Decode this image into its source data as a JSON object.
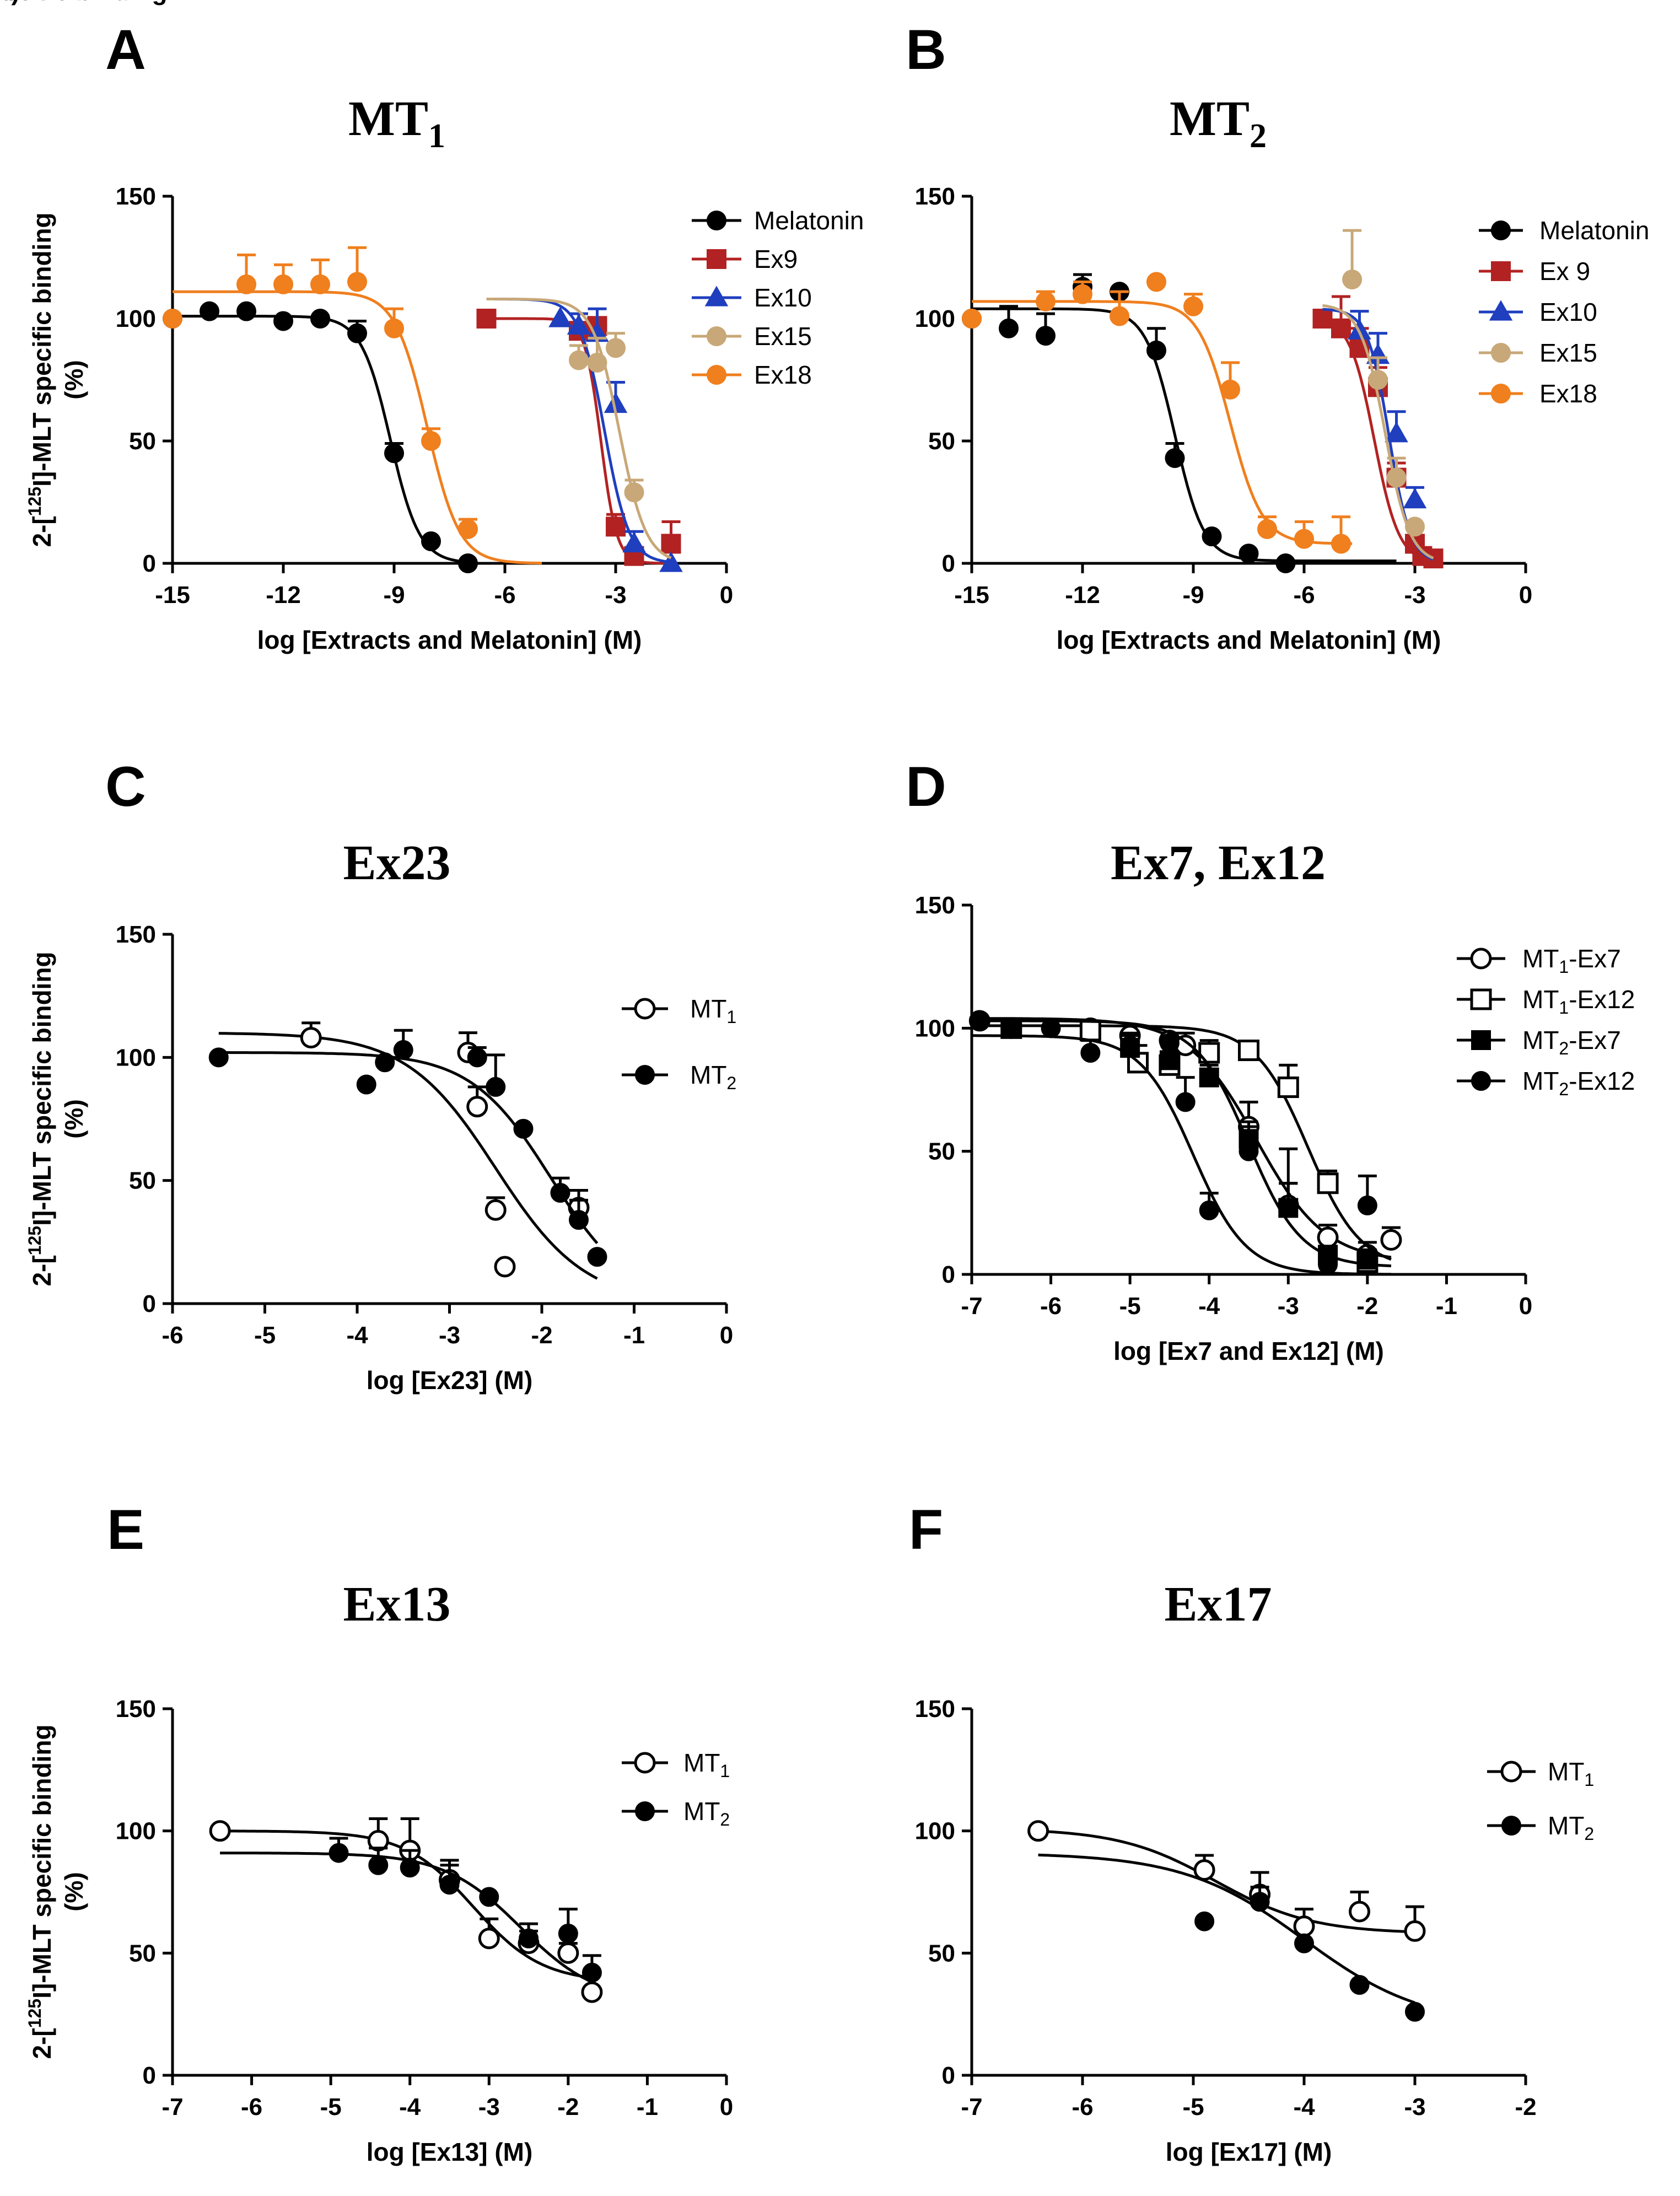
{
  "figure": {
    "ylabel_line1": "2-[125I]-MLT specific binding",
    "ylabel_line2": "(%)",
    "ylabel_parts": {
      "pre": "2-[",
      "sup": "125",
      "post": "I]-MLT specific binding"
    }
  },
  "chart_data": [
    {
      "panel": "A",
      "type": "scatter",
      "title": "MT1",
      "title_parts": {
        "main": "MT",
        "sub": "1"
      },
      "xlabel": "log [Extracts and Melatonin] (M)",
      "ylabel": "2-[125I]-MLT specific binding (%)",
      "xlim": [
        -15,
        0
      ],
      "ylim": [
        0,
        150
      ],
      "xticks": [
        -15,
        -12,
        -9,
        -6,
        -3,
        0
      ],
      "yticks": [
        0,
        50,
        100,
        150
      ],
      "legend_position": "top-right",
      "series": [
        {
          "name": "Melatonin",
          "color": "#000000",
          "marker": "circle",
          "fill": true,
          "x": [
            -15,
            -14,
            -13,
            -12,
            -11,
            -10,
            -9,
            -8,
            -7
          ],
          "y": [
            100,
            103,
            103,
            99,
            100,
            94,
            45,
            9,
            0
          ],
          "err": [
            0,
            0,
            0,
            0,
            0,
            5,
            4,
            0,
            0
          ],
          "fit": {
            "top": 101,
            "bottom": 0,
            "logic50": -9.1,
            "hill": 1.1,
            "x0": -15,
            "x1": -7
          }
        },
        {
          "name": "Ex9",
          "color": "#b22222",
          "marker": "square",
          "fill": true,
          "x": [
            -6.5,
            -4,
            -3.5,
            -3,
            -2.5,
            -1.5
          ],
          "y": [
            100,
            95,
            97,
            15,
            3,
            8
          ],
          "err": [
            0,
            0,
            0,
            5,
            0,
            9
          ],
          "fit": {
            "top": 100,
            "bottom": 0,
            "logic50": -3.4,
            "hill": 2.0,
            "x0": -6.5,
            "x1": -1.5
          }
        },
        {
          "name": "Ex10",
          "color": "#1f3fbf",
          "marker": "triangle",
          "fill": true,
          "x": [
            -4.5,
            -4,
            -3.5,
            -3,
            -2.5,
            -1.5
          ],
          "y": [
            100,
            97,
            94,
            65,
            8,
            0
          ],
          "err": [
            0,
            5,
            10,
            9,
            5,
            0
          ],
          "fit": {
            "top": 108,
            "bottom": 0,
            "logic50": -3.3,
            "hill": 1.3,
            "x0": -6.5,
            "x1": -1.5
          }
        },
        {
          "name": "Ex15",
          "color": "#c8a878",
          "marker": "circle",
          "fill": true,
          "x": [
            -4,
            -3.5,
            -3,
            -2.5
          ],
          "y": [
            83,
            82,
            88,
            29
          ],
          "err": [
            6,
            10,
            6,
            5
          ],
          "fit": {
            "top": 108,
            "bottom": 0,
            "logic50": -2.9,
            "hill": 1.2,
            "x0": -6.5,
            "x1": -1.5
          }
        },
        {
          "name": "Ex18",
          "color": "#f07f1e",
          "marker": "circle",
          "fill": true,
          "x": [
            -15,
            -13,
            -12,
            -11,
            -10,
            -9,
            -8,
            -7
          ],
          "y": [
            100,
            114,
            114,
            114,
            115,
            96,
            50,
            14
          ],
          "err": [
            0,
            12,
            8,
            10,
            14,
            8,
            5,
            4
          ],
          "fit": {
            "top": 111,
            "bottom": 0,
            "logic50": -8.1,
            "hill": 1.0,
            "x0": -15,
            "x1": -5
          }
        }
      ]
    },
    {
      "panel": "B",
      "type": "scatter",
      "title": "MT2",
      "title_parts": {
        "main": "MT",
        "sub": "2"
      },
      "xlabel": "log [Extracts and Melatonin] (M)",
      "ylabel": "2-[125I]-MLT specific binding (%)",
      "xlim": [
        -15,
        0
      ],
      "ylim": [
        0,
        150
      ],
      "xticks": [
        -15,
        -12,
        -9,
        -6,
        -3,
        0
      ],
      "yticks": [
        0,
        50,
        100,
        150
      ],
      "legend_position": "top-right",
      "series": [
        {
          "name": "Melatonin",
          "color": "#000000",
          "marker": "circle",
          "fill": true,
          "x": [
            -15,
            -14,
            -13,
            -12,
            -11,
            -10,
            -9.5,
            -8.5,
            -7.5,
            -6.5
          ],
          "y": [
            100,
            96,
            93,
            113,
            111,
            87,
            43,
            11,
            4,
            0
          ],
          "err": [
            0,
            9,
            9,
            5,
            0,
            9,
            6,
            0,
            0,
            0
          ],
          "fit": {
            "top": 104,
            "bottom": 1,
            "logic50": -9.5,
            "hill": 1.1,
            "x0": -15,
            "x1": -3.5
          }
        },
        {
          "name": "Ex 9",
          "color": "#b22222",
          "marker": "square",
          "fill": true,
          "x": [
            -5.5,
            -5,
            -4.5,
            -4,
            -3.5,
            -3,
            -2.8,
            -2.5
          ],
          "y": [
            100,
            96,
            88,
            72,
            35,
            8,
            3,
            2
          ],
          "err": [
            0,
            13,
            8,
            8,
            6,
            0,
            0,
            0
          ],
          "fit": {
            "top": 101,
            "bottom": 0,
            "logic50": -4.1,
            "hill": 1.3,
            "x0": -5.5,
            "x1": -2.5
          }
        },
        {
          "name": "Ex10",
          "color": "#1f3fbf",
          "marker": "triangle",
          "fill": true,
          "x": [
            -4.5,
            -4,
            -3.5,
            -3
          ],
          "y": [
            95,
            85,
            53,
            26
          ],
          "err": [
            8,
            9,
            9,
            5
          ],
          "fit": {
            "top": 104,
            "bottom": 0,
            "logic50": -3.7,
            "hill": 1.5,
            "x0": -5.5,
            "x1": -2.5
          }
        },
        {
          "name": "Ex15",
          "color": "#c8a878",
          "marker": "circle",
          "fill": true,
          "x": [
            -4.7,
            -4,
            -3.5,
            -3
          ],
          "y": [
            116,
            75,
            35,
            15
          ],
          "err": [
            20,
            9,
            8,
            0
          ],
          "fit": {
            "top": 106,
            "bottom": 0,
            "logic50": -3.8,
            "hill": 1.3,
            "x0": -5.5,
            "x1": -2.5
          }
        },
        {
          "name": "Ex18",
          "color": "#f07f1e",
          "marker": "circle",
          "fill": true,
          "x": [
            -15,
            -13,
            -12,
            -11,
            -10,
            -9,
            -8,
            -7,
            -6,
            -5
          ],
          "y": [
            100,
            107,
            110,
            101,
            115,
            105,
            71,
            14,
            10,
            8
          ],
          "err": [
            0,
            4,
            5,
            10,
            0,
            5,
            11,
            5,
            7,
            11
          ],
          "fit": {
            "top": 107,
            "bottom": 8,
            "logic50": -8.0,
            "hill": 1.0,
            "x0": -15,
            "x1": -4.7
          }
        }
      ]
    },
    {
      "panel": "C",
      "type": "scatter",
      "title": "Ex23",
      "xlabel": "log [Ex23] (M)",
      "ylabel": "2-[125I]-MLT specific binding (%)",
      "xlim": [
        -6,
        0
      ],
      "ylim": [
        0,
        150
      ],
      "xticks": [
        -6,
        -5,
        -4,
        -3,
        -2,
        -1,
        0
      ],
      "yticks": [
        0,
        50,
        100,
        150
      ],
      "legend_position": "top-right",
      "series": [
        {
          "name": "MT1",
          "color": "#000000",
          "marker": "circle",
          "fill": false,
          "x": [
            -4.5,
            -2.8,
            -2.7,
            -2.5,
            -2.4,
            -1.6
          ],
          "y": [
            108,
            102,
            80,
            38,
            15,
            39
          ],
          "err": [
            6,
            8,
            8,
            5,
            0,
            7
          ],
          "fit": {
            "top": 110,
            "bottom": 0,
            "logic50": -2.5,
            "hill": 0.9,
            "x0": -5.5,
            "x1": -1.4
          }
        },
        {
          "name": "MT2",
          "color": "#000000",
          "marker": "circle",
          "fill": true,
          "x": [
            -5.5,
            -3.9,
            -3.7,
            -3.5,
            -2.7,
            -2.5,
            -2.2,
            -1.8,
            -1.6,
            -1.4
          ],
          "y": [
            100,
            89,
            98,
            103,
            100,
            88,
            71,
            45,
            34,
            19
          ],
          "err": [
            0,
            0,
            0,
            8,
            4,
            13,
            0,
            6,
            8,
            0
          ],
          "fit": {
            "top": 102,
            "bottom": 0,
            "logic50": -1.9,
            "hill": 1.0,
            "x0": -5.5,
            "x1": -1.4
          }
        }
      ]
    },
    {
      "panel": "D",
      "type": "scatter",
      "title": "Ex7, Ex12",
      "xlabel": "log [Ex7 and Ex12] (M)",
      "ylabel": "",
      "xlim": [
        -7,
        0
      ],
      "ylim": [
        0,
        150
      ],
      "xticks": [
        -7,
        -6,
        -5,
        -4,
        -3,
        -2,
        -1,
        0
      ],
      "yticks": [
        0,
        50,
        100,
        150
      ],
      "legend_position": "top-right",
      "series": [
        {
          "name": "MT1-Ex7",
          "name_parts": {
            "pre": "MT",
            "sub": "1",
            "post": "-Ex7"
          },
          "color": "#000000",
          "marker": "circle",
          "fill": false,
          "x": [
            -6.9,
            -6.5,
            -5.5,
            -5,
            -4.5,
            -4.3,
            -3.5,
            -3,
            -2.5,
            -2,
            -1.7
          ],
          "y": [
            103,
            100,
            100,
            97,
            95,
            93,
            60,
            28,
            15,
            8,
            14
          ],
          "err": [
            0,
            0,
            0,
            0,
            0,
            5,
            10,
            9,
            5,
            5,
            5
          ],
          "fit": {
            "top": 104,
            "bottom": 5,
            "logic50": -3.4,
            "hill": 1.0,
            "x0": -7,
            "x1": -1.7
          }
        },
        {
          "name": "MT1-Ex12",
          "name_parts": {
            "pre": "MT",
            "sub": "1",
            "post": "-Ex12"
          },
          "color": "#000000",
          "marker": "square",
          "fill": false,
          "x": [
            -6.5,
            -5.5,
            -4.9,
            -4.5,
            -4,
            -3.5,
            -3,
            -2.5,
            -2
          ],
          "y": [
            100,
            99,
            86,
            85,
            90,
            91,
            76,
            37,
            5
          ],
          "err": [
            0,
            0,
            7,
            9,
            5,
            0,
            9,
            5,
            5
          ],
          "fit": {
            "top": 101,
            "bottom": 2,
            "logic50": -2.75,
            "hill": 1.3,
            "x0": -7,
            "x1": -1.7
          }
        },
        {
          "name": "MT2-Ex7",
          "name_parts": {
            "pre": "MT",
            "sub": "2",
            "post": "-Ex7"
          },
          "color": "#000000",
          "marker": "square",
          "fill": true,
          "x": [
            -6.5,
            -5,
            -4.5,
            -4,
            -3.5,
            -3,
            -2.5,
            -2
          ],
          "y": [
            100,
            92,
            87,
            80,
            55,
            27,
            8,
            6
          ],
          "err": [
            0,
            5,
            7,
            5,
            5,
            10,
            0,
            0
          ],
          "fit": {
            "top": 103,
            "bottom": 3,
            "logic50": -3.5,
            "hill": 1.3,
            "x0": -7,
            "x1": -1.7
          }
        },
        {
          "name": "MT2-Ex12",
          "name_parts": {
            "pre": "MT",
            "sub": "2",
            "post": "-Ex12"
          },
          "color": "#000000",
          "marker": "circle",
          "fill": true,
          "x": [
            -6.9,
            -6,
            -5.5,
            -5,
            -4.5,
            -4.3,
            -4,
            -3.5,
            -3,
            -2.5,
            -2
          ],
          "y": [
            103,
            100,
            90,
            93,
            94,
            70,
            26,
            50,
            27,
            4,
            28
          ],
          "err": [
            0,
            0,
            5,
            5,
            0,
            10,
            7,
            12,
            24,
            0,
            12
          ],
          "fit": {
            "top": 97,
            "bottom": 0,
            "logic50": -4.2,
            "hill": 1.3,
            "x0": -7,
            "x1": -1.7
          }
        }
      ]
    },
    {
      "panel": "E",
      "type": "scatter",
      "title": "Ex13",
      "xlabel": "log [Ex13] (M)",
      "ylabel": "2-[125I]-MLT specific binding (%)",
      "xlim": [
        -7,
        0
      ],
      "ylim": [
        0,
        150
      ],
      "xticks": [
        -7,
        -6,
        -5,
        -4,
        -3,
        -2,
        -1,
        0
      ],
      "yticks": [
        0,
        50,
        100,
        150
      ],
      "legend_position": "top-right",
      "series": [
        {
          "name": "MT1",
          "color": "#000000",
          "marker": "circle",
          "fill": false,
          "x": [
            -6.4,
            -4.4,
            -4,
            -3.5,
            -3,
            -2.5,
            -2,
            -1.7
          ],
          "y": [
            100,
            96,
            92,
            80,
            56,
            54,
            50,
            34
          ],
          "err": [
            0,
            9,
            13,
            8,
            8,
            5,
            4,
            0
          ],
          "fit": {
            "top": 100,
            "bottom": 38,
            "logic50": -3.2,
            "hill": 1.0,
            "x0": -6.4,
            "x1": -1.7
          }
        },
        {
          "name": "MT2",
          "color": "#000000",
          "marker": "circle",
          "fill": true,
          "x": [
            -4.9,
            -4.4,
            -4,
            -3.5,
            -3,
            -2.5,
            -2,
            -1.7
          ],
          "y": [
            91,
            86,
            85,
            78,
            73,
            56,
            58,
            42
          ],
          "err": [
            6,
            7,
            7,
            8,
            0,
            6,
            10,
            7
          ],
          "fit": {
            "top": 91,
            "bottom": 30,
            "logic50": -2.6,
            "hill": 0.9,
            "x0": -6.4,
            "x1": -1.7
          }
        }
      ]
    },
    {
      "panel": "F",
      "type": "scatter",
      "title": "Ex17",
      "xlabel": "log [Ex17] (M)",
      "ylabel": "",
      "xlim": [
        -7,
        -2
      ],
      "ylim": [
        0,
        150
      ],
      "xticks": [
        -7,
        -6,
        -5,
        -4,
        -3,
        -2
      ],
      "yticks": [
        0,
        50,
        100,
        150
      ],
      "legend_position": "top-right",
      "series": [
        {
          "name": "MT1",
          "color": "#000000",
          "marker": "circle",
          "fill": false,
          "x": [
            -6.4,
            -4.9,
            -4.4,
            -4,
            -3.5,
            -3
          ],
          "y": [
            100,
            84,
            74,
            61,
            67,
            59
          ],
          "err": [
            0,
            6,
            9,
            7,
            8,
            10
          ],
          "fit": {
            "top": 101,
            "bottom": 58,
            "logic50": -4.8,
            "hill": 1.0,
            "x0": -6.4,
            "x1": -3
          }
        },
        {
          "name": "MT2",
          "color": "#000000",
          "marker": "circle",
          "fill": true,
          "x": [
            -4.9,
            -4.4,
            -4,
            -3.5,
            -3
          ],
          "y": [
            63,
            71,
            54,
            37,
            26
          ],
          "err": [
            0,
            6,
            0,
            0,
            0
          ],
          "fit": {
            "top": 91,
            "bottom": 20,
            "logic50": -4.0,
            "hill": 0.8,
            "x0": -6.4,
            "x1": -3
          }
        }
      ]
    }
  ]
}
